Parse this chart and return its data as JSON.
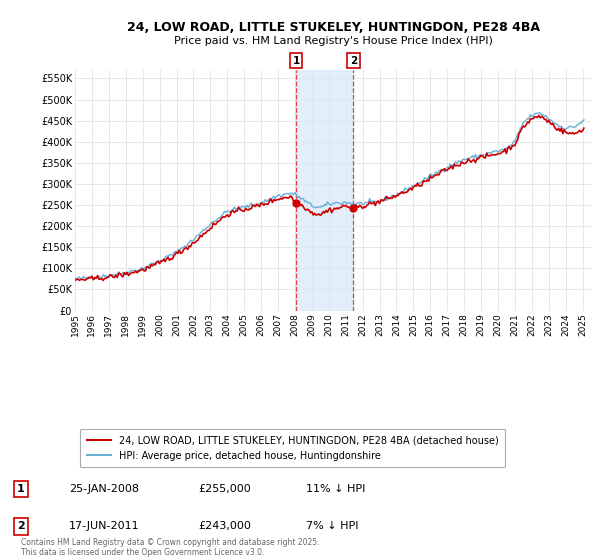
{
  "title": "24, LOW ROAD, LITTLE STUKELEY, HUNTINGDON, PE28 4BA",
  "subtitle": "Price paid vs. HM Land Registry's House Price Index (HPI)",
  "ylabel_ticks": [
    "£0",
    "£50K",
    "£100K",
    "£150K",
    "£200K",
    "£250K",
    "£300K",
    "£350K",
    "£400K",
    "£450K",
    "£500K",
    "£550K"
  ],
  "ytick_vals": [
    0,
    50000,
    100000,
    150000,
    200000,
    250000,
    300000,
    350000,
    400000,
    450000,
    500000,
    550000
  ],
  "ylim": [
    0,
    570000
  ],
  "xlim_start": 1995.0,
  "xlim_end": 2025.5,
  "hpi_color": "#6baed6",
  "price_color": "#cc0000",
  "shade_color": "#d6e8f7",
  "transaction1_x": 2008.07,
  "transaction1_y": 255000,
  "transaction2_x": 2011.46,
  "transaction2_y": 243000,
  "legend_line1": "24, LOW ROAD, LITTLE STUKELEY, HUNTINGDON, PE28 4BA (detached house)",
  "legend_line2": "HPI: Average price, detached house, Huntingdonshire",
  "table_row1": [
    "1",
    "25-JAN-2008",
    "£255,000",
    "11% ↓ HPI"
  ],
  "table_row2": [
    "2",
    "17-JUN-2011",
    "£243,000",
    "7% ↓ HPI"
  ],
  "footer": "Contains HM Land Registry data © Crown copyright and database right 2025.\nThis data is licensed under the Open Government Licence v3.0.",
  "background_color": "#ffffff",
  "grid_color": "#dddddd"
}
